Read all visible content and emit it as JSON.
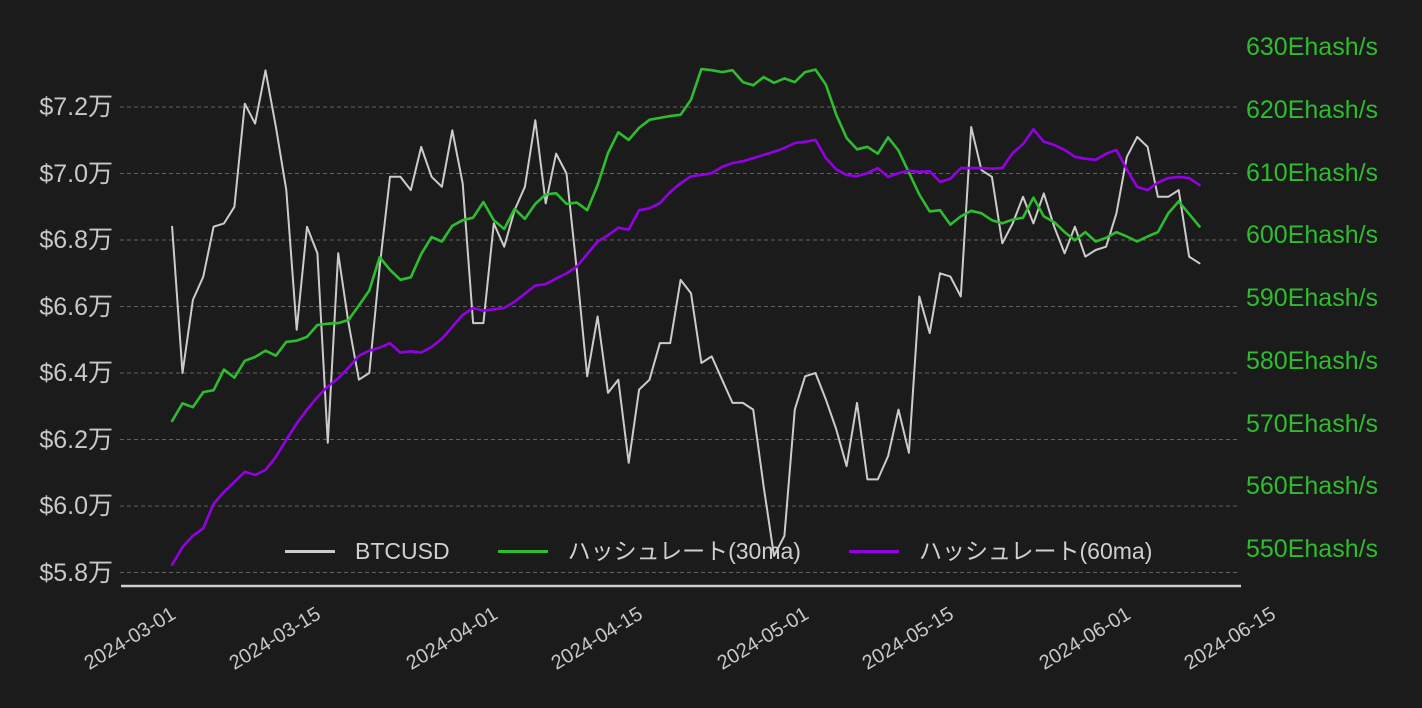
{
  "colors": {
    "background": "#1b1b1b",
    "axis_text": "#c8c8c8",
    "grid": "#9a9a9a",
    "baseline": "#cfcfcf",
    "right_axis_text": "#2ebd2e"
  },
  "chart_data": {
    "type": "line",
    "title": "",
    "legend_position": "bottom",
    "grid": true,
    "x_tick_labels": [
      "2024-03-01",
      "2024-03-15",
      "2024-04-01",
      "2024-04-15",
      "2024-05-01",
      "2024-05-15",
      "2024-06-01",
      "2024-06-15"
    ],
    "left_axis": {
      "tick_labels": [
        "$7.2万",
        "$7.0万",
        "$6.8万",
        "$6.6万",
        "$6.4万",
        "$6.2万",
        "$6.0万",
        "$5.8万"
      ],
      "tick_values": [
        72000,
        70000,
        68000,
        66000,
        64000,
        62000,
        60000,
        58000
      ],
      "range": [
        58000,
        72000
      ]
    },
    "right_axis": {
      "tick_labels": [
        "630Ehash/s",
        "620Ehash/s",
        "610Ehash/s",
        "600Ehash/s",
        "590Ehash/s",
        "580Ehash/s",
        "570Ehash/s",
        "560Ehash/s",
        "550Ehash/s"
      ],
      "tick_values": [
        630,
        620,
        610,
        600,
        590,
        580,
        570,
        560,
        550
      ],
      "range": [
        550,
        630
      ]
    },
    "dates": [
      "2024-03-04",
      "2024-03-05",
      "2024-03-06",
      "2024-03-07",
      "2024-03-08",
      "2024-03-09",
      "2024-03-10",
      "2024-03-11",
      "2024-03-12",
      "2024-03-13",
      "2024-03-14",
      "2024-03-15",
      "2024-03-16",
      "2024-03-17",
      "2024-03-18",
      "2024-03-19",
      "2024-03-20",
      "2024-03-21",
      "2024-03-22",
      "2024-03-23",
      "2024-03-24",
      "2024-03-25",
      "2024-03-26",
      "2024-03-27",
      "2024-03-28",
      "2024-03-29",
      "2024-03-30",
      "2024-03-31",
      "2024-04-01",
      "2024-04-02",
      "2024-04-03",
      "2024-04-04",
      "2024-04-05",
      "2024-04-06",
      "2024-04-07",
      "2024-04-08",
      "2024-04-09",
      "2024-04-10",
      "2024-04-11",
      "2024-04-12",
      "2024-04-13",
      "2024-04-14",
      "2024-04-15",
      "2024-04-16",
      "2024-04-17",
      "2024-04-18",
      "2024-04-19",
      "2024-04-20",
      "2024-04-21",
      "2024-04-22",
      "2024-04-23",
      "2024-04-24",
      "2024-04-25",
      "2024-04-26",
      "2024-04-27",
      "2024-04-28",
      "2024-04-29",
      "2024-04-30",
      "2024-05-01",
      "2024-05-02",
      "2024-05-03",
      "2024-05-04",
      "2024-05-05",
      "2024-05-06",
      "2024-05-07",
      "2024-05-08",
      "2024-05-09",
      "2024-05-10",
      "2024-05-11",
      "2024-05-12",
      "2024-05-13",
      "2024-05-14",
      "2024-05-15",
      "2024-05-16",
      "2024-05-17",
      "2024-05-18",
      "2024-05-19",
      "2024-05-20",
      "2024-05-21",
      "2024-05-22",
      "2024-05-23",
      "2024-05-24",
      "2024-05-25",
      "2024-05-26",
      "2024-05-27",
      "2024-05-28",
      "2024-05-29",
      "2024-05-30",
      "2024-05-31",
      "2024-06-01",
      "2024-06-02",
      "2024-06-03",
      "2024-06-04",
      "2024-06-05",
      "2024-06-06",
      "2024-06-07",
      "2024-06-08",
      "2024-06-09",
      "2024-06-10",
      "2024-06-11"
    ],
    "series": [
      {
        "name": "BTCUSD",
        "axis": "left",
        "color": "#cbcbcb",
        "values": [
          68400,
          64000,
          66200,
          66900,
          68400,
          68500,
          69000,
          72100,
          71500,
          73100,
          71400,
          69500,
          65300,
          68400,
          67600,
          61900,
          67600,
          65500,
          63800,
          64000,
          67200,
          69900,
          69900,
          69500,
          70800,
          69900,
          69600,
          71300,
          69700,
          65500,
          65500,
          68500,
          67800,
          68900,
          69600,
          71600,
          69100,
          70600,
          70000,
          67100,
          63900,
          65700,
          63400,
          63800,
          61300,
          63500,
          63800,
          64900,
          64900,
          66800,
          66400,
          64300,
          64500,
          63800,
          63100,
          63100,
          62900,
          60600,
          58500,
          59100,
          62900,
          63900,
          64000,
          63200,
          62300,
          61200,
          63100,
          60800,
          60800,
          61500,
          62900,
          61600,
          66300,
          65200,
          67000,
          66900,
          66300,
          71400,
          70100,
          69900,
          67900,
          68500,
          69300,
          68500,
          69400,
          68400,
          67600,
          68400,
          67500,
          67700,
          67800,
          68800,
          70500,
          71100,
          70800,
          69300,
          69300,
          69500,
          67500,
          67300
        ]
      },
      {
        "name": "ハッシュレート(30ma)",
        "axis": "right",
        "color": "#2ebd2e",
        "values": [
          570.4,
          573.2,
          572.6,
          575.0,
          575.3,
          578.6,
          577.3,
          580.0,
          580.6,
          581.6,
          580.8,
          583.0,
          583.2,
          583.8,
          585.7,
          585.9,
          586.0,
          586.5,
          588.8,
          591.2,
          596.5,
          594.5,
          592.9,
          593.3,
          597.0,
          599.7,
          599.0,
          601.5,
          602.4,
          602.8,
          605.3,
          602.4,
          601.0,
          604.2,
          602.6,
          605.0,
          606.5,
          606.7,
          605.0,
          605.2,
          604.0,
          608.0,
          613.1,
          616.4,
          615.2,
          617.1,
          618.4,
          618.7,
          619.0,
          619.2,
          621.6,
          626.5,
          626.3,
          626.0,
          626.3,
          624.4,
          623.9,
          625.2,
          624.3,
          625.0,
          624.4,
          626.0,
          626.4,
          624.0,
          619.2,
          615.5,
          613.7,
          614.1,
          613.0,
          615.6,
          613.5,
          610.0,
          606.5,
          603.8,
          604.0,
          601.7,
          603.0,
          603.9,
          603.5,
          602.4,
          601.9,
          602.5,
          602.8,
          606.0,
          603.0,
          602.1,
          600.5,
          599.2,
          600.5,
          599.0,
          599.6,
          600.5,
          599.8,
          599.0,
          599.8,
          600.5,
          603.5,
          605.4,
          603.4,
          601.4
        ]
      },
      {
        "name": "ハッシュレート(60ma)",
        "axis": "right",
        "color": "#9400e3",
        "values": [
          547.5,
          550.3,
          552.1,
          553.3,
          557.2,
          559.1,
          560.7,
          562.3,
          561.8,
          562.6,
          564.7,
          567.4,
          570.0,
          572.2,
          574.2,
          575.9,
          577.2,
          578.9,
          580.8,
          581.6,
          582.1,
          582.8,
          581.3,
          581.5,
          581.3,
          582.2,
          583.5,
          585.4,
          587.3,
          588.4,
          588.0,
          588.2,
          588.4,
          589.4,
          590.7,
          592.0,
          592.2,
          593.1,
          593.9,
          595.0,
          597.0,
          599.0,
          600.0,
          601.2,
          600.9,
          604.0,
          604.3,
          605.1,
          606.9,
          608.3,
          609.4,
          609.6,
          609.9,
          610.9,
          611.5,
          611.8,
          612.3,
          612.8,
          613.3,
          613.9,
          614.7,
          614.9,
          615.2,
          612.3,
          610.5,
          609.6,
          609.4,
          609.9,
          610.7,
          609.3,
          609.9,
          610.3,
          610.1,
          610.2,
          608.5,
          609.0,
          610.7,
          610.7,
          610.7,
          610.6,
          610.7,
          613.1,
          614.5,
          616.9,
          614.9,
          614.4,
          613.6,
          612.5,
          612.2,
          612.0,
          613.0,
          613.6,
          610.5,
          607.7,
          607.2,
          608.4,
          609.1,
          609.3,
          609.1,
          608.0
        ]
      }
    ]
  }
}
